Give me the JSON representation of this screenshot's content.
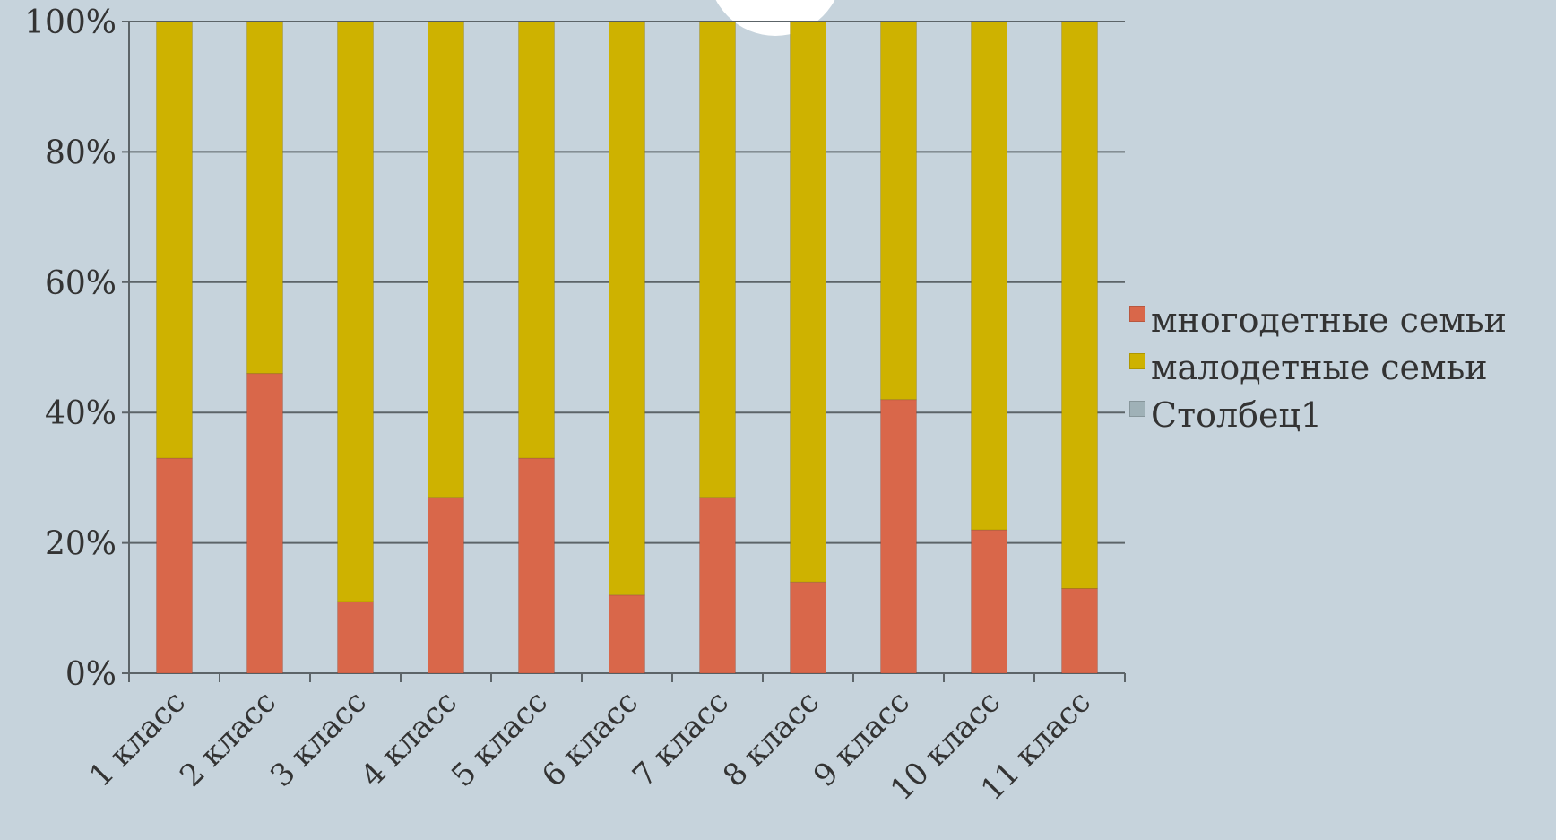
{
  "chart_data": {
    "type": "bar",
    "stacked": true,
    "percent": true,
    "categories": [
      "1 класс",
      "2 класс",
      "3 класс",
      "4 класс",
      "5 класс",
      "6 класс",
      "7 класс",
      "8 класс",
      "9 класс",
      "10 класс",
      "11 класс"
    ],
    "series": [
      {
        "name": "многодетные семьи",
        "color": "#d9674a",
        "values": [
          33,
          46,
          11,
          27,
          33,
          12,
          27,
          14,
          42,
          22,
          13
        ]
      },
      {
        "name": "малодетные семьи",
        "color": "#ceb200",
        "values": [
          67,
          54,
          89,
          73,
          67,
          88,
          73,
          86,
          58,
          78,
          87
        ]
      },
      {
        "name": "Столбец1",
        "color": "#9fb1b7",
        "values": [
          0,
          0,
          0,
          0,
          0,
          0,
          0,
          0,
          0,
          0,
          0
        ]
      }
    ],
    "yticks": [
      "0%",
      "20%",
      "40%",
      "60%",
      "80%",
      "100%"
    ],
    "ylim": [
      0,
      100
    ],
    "grid": true,
    "legend_position": "right"
  }
}
